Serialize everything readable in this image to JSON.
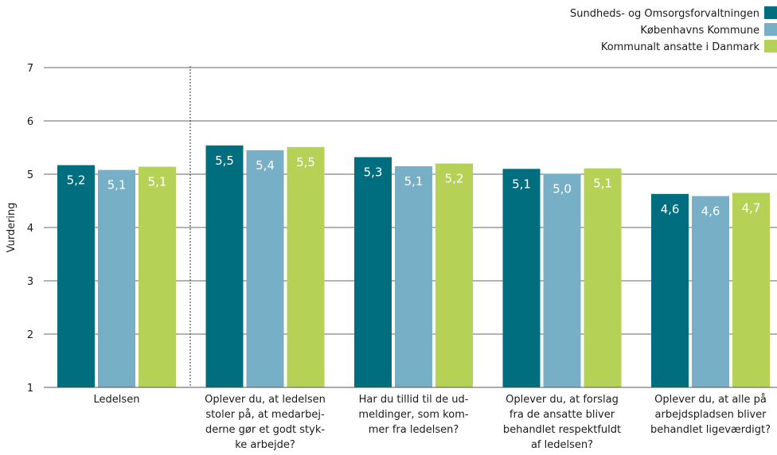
{
  "chart_data": {
    "type": "bar",
    "ylabel": "Vurdering",
    "ylim": [
      1,
      7
    ],
    "yticks": [
      1,
      2,
      3,
      4,
      5,
      6,
      7
    ],
    "grid": true,
    "legend_position": "top-right",
    "categories": [
      [
        "Ledelsen"
      ],
      [
        "Oplever du, at ledelsen",
        "stoler på, at medarbej-",
        "derne gør et godt styk-",
        "ke arbejde?"
      ],
      [
        "Har du tillid til de ud-",
        "meldinger, som kom-",
        "mer fra ledelsen?"
      ],
      [
        "Oplever du, at forslag",
        "fra de ansatte bliver",
        "behandlet respektfuldt",
        "af ledelsen?"
      ],
      [
        "Oplever du, at alle på",
        "arbejdspladsen bliver",
        "behandlet ligeværdigt?"
      ]
    ],
    "series": [
      {
        "name": "Sundheds- og Omsorgsforvaltningen",
        "color": "#006e7f",
        "values": [
          5.17,
          5.54,
          5.32,
          5.1,
          4.63
        ],
        "labels": [
          "5,2",
          "5,5",
          "5,3",
          "5,1",
          "4,6"
        ]
      },
      {
        "name": "Københavns Kommune",
        "color": "#76afc6",
        "values": [
          5.08,
          5.45,
          5.15,
          5.01,
          4.59
        ],
        "labels": [
          "5,1",
          "5,4",
          "5,1",
          "5,0",
          "4,6"
        ]
      },
      {
        "name": "Kommunalt ansatte i Danmark",
        "color": "#b5d156",
        "values": [
          5.14,
          5.51,
          5.2,
          5.11,
          4.65
        ],
        "labels": [
          "5,1",
          "5,5",
          "5,2",
          "5,1",
          "4,7"
        ]
      }
    ]
  }
}
